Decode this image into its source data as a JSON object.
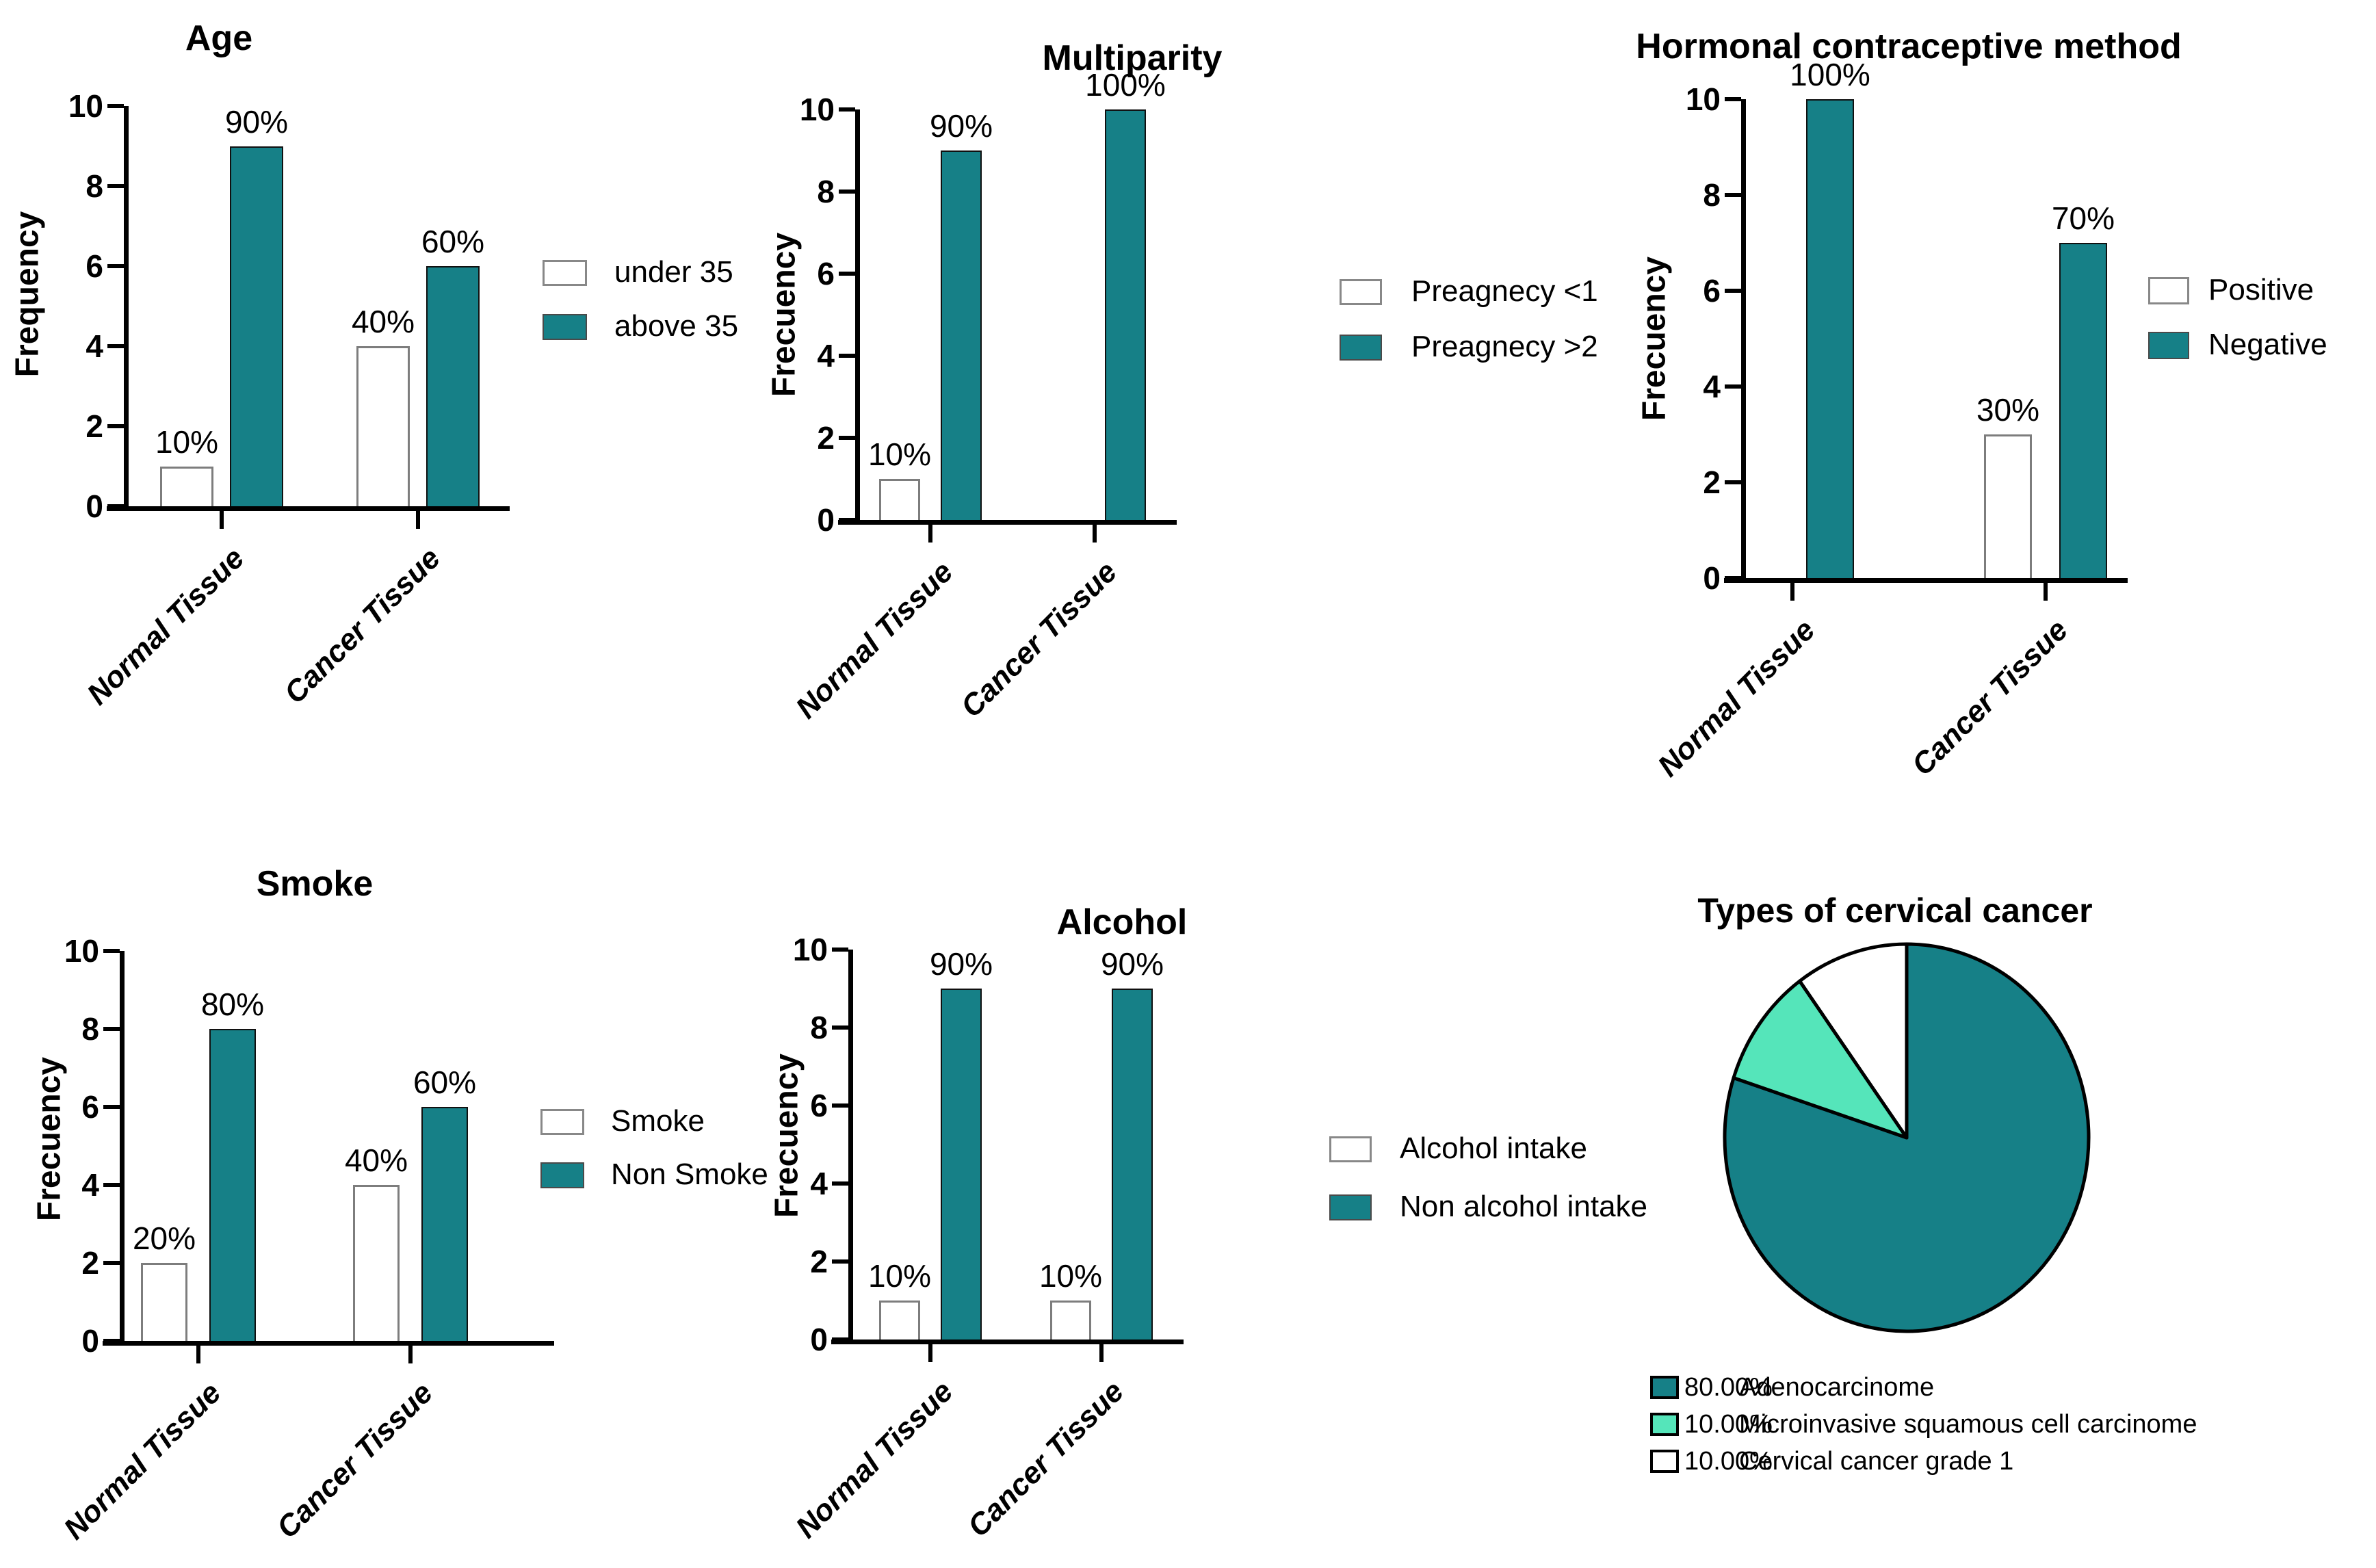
{
  "colors": {
    "teal": "#168087",
    "mint": "#55E5BA",
    "white": "#FFFFFF",
    "outline": "#000000"
  },
  "chart_data": [
    {
      "type": "bar",
      "title": "Age",
      "ylabel": "Frequency",
      "ylim": [
        0,
        10
      ],
      "yticks": [
        0,
        2,
        4,
        6,
        8,
        10
      ],
      "categories": [
        "Normal Tissue",
        "Cancer Tissue"
      ],
      "legend_position": "right",
      "grid": false,
      "series": [
        {
          "name": "under 35",
          "color": "#FFFFFF",
          "values": [
            1,
            4
          ],
          "bar_labels": [
            "10%",
            "40%"
          ]
        },
        {
          "name": "above 35",
          "color": "#168087",
          "values": [
            9,
            6
          ],
          "bar_labels": [
            "90%",
            "60%"
          ]
        }
      ]
    },
    {
      "type": "bar",
      "title": "Multiparity",
      "ylabel": "Frecuency",
      "ylim": [
        0,
        10
      ],
      "yticks": [
        0,
        2,
        4,
        6,
        8,
        10
      ],
      "categories": [
        "Normal Tissue",
        "Cancer Tissue"
      ],
      "legend_position": "right",
      "grid": false,
      "series": [
        {
          "name": "Preagnecy <1",
          "color": "#FFFFFF",
          "values": [
            1,
            0
          ],
          "bar_labels": [
            "10%",
            ""
          ]
        },
        {
          "name": "Preagnecy >2",
          "color": "#168087",
          "values": [
            9,
            10
          ],
          "bar_labels": [
            "90%",
            "100%"
          ]
        }
      ]
    },
    {
      "type": "bar",
      "title": "Hormonal contraceptive method",
      "ylabel": "Frecuency",
      "ylim": [
        0,
        10
      ],
      "yticks": [
        0,
        2,
        4,
        6,
        8,
        10
      ],
      "categories": [
        "Normal Tissue",
        "Cancer Tissue"
      ],
      "legend_position": "right",
      "grid": false,
      "series": [
        {
          "name": "Positive",
          "color": "#FFFFFF",
          "values": [
            0,
            3
          ],
          "bar_labels": [
            "",
            "30%"
          ]
        },
        {
          "name": "Negative",
          "color": "#168087",
          "values": [
            10,
            7
          ],
          "bar_labels": [
            "100%",
            "70%"
          ]
        }
      ]
    },
    {
      "type": "bar",
      "title": "Smoke",
      "ylabel": "Frecuency",
      "ylim": [
        0,
        10
      ],
      "yticks": [
        0,
        2,
        4,
        6,
        8,
        10
      ],
      "categories": [
        "Normal Tissue",
        "Cancer Tissue"
      ],
      "legend_position": "right",
      "grid": false,
      "series": [
        {
          "name": "Smoke",
          "color": "#FFFFFF",
          "values": [
            2,
            4
          ],
          "bar_labels": [
            "20%",
            "40%"
          ]
        },
        {
          "name": "Non Smoke",
          "color": "#168087",
          "values": [
            8,
            6
          ],
          "bar_labels": [
            "80%",
            "60%"
          ]
        }
      ]
    },
    {
      "type": "bar",
      "title": "Alcohol",
      "ylabel": "Frecuency",
      "ylim": [
        0,
        10
      ],
      "yticks": [
        0,
        2,
        4,
        6,
        8,
        10
      ],
      "categories": [
        "Normal Tissue",
        "Cancer Tissue"
      ],
      "legend_position": "right",
      "grid": false,
      "series": [
        {
          "name": "Alcohol intake",
          "color": "#FFFFFF",
          "values": [
            1,
            1
          ],
          "bar_labels": [
            "10%",
            "10%"
          ]
        },
        {
          "name": "Non alcohol intake",
          "color": "#168087",
          "values": [
            9,
            9
          ],
          "bar_labels": [
            "90%",
            "90%"
          ]
        }
      ]
    },
    {
      "type": "pie",
      "title": "Types of cervical cancer",
      "legend_position": "bottom",
      "slices": [
        {
          "value": 80,
          "pct_label": "80.00%",
          "label": "Adenocarcinome",
          "color": "#168087"
        },
        {
          "value": 10,
          "pct_label": "10.00%",
          "label": "Microinvasive squamous cell carcinome",
          "color": "#55E5BA"
        },
        {
          "value": 10,
          "pct_label": "10.00%",
          "label": "Cervical cancer grade 1",
          "color": "#FFFFFF"
        }
      ]
    }
  ]
}
